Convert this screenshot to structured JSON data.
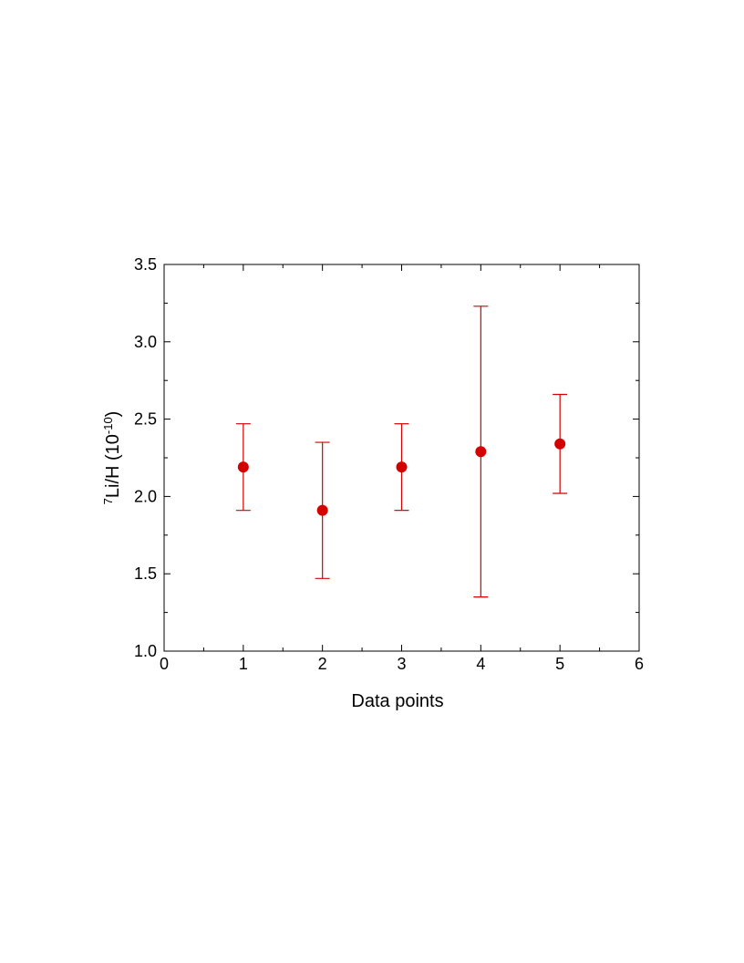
{
  "chart_data": {
    "type": "errorbar",
    "xlabel": "Data points",
    "ylabel_parts": [
      "7",
      "Li/H (10",
      "-10",
      ")"
    ],
    "x": [
      1,
      2,
      3,
      4,
      5
    ],
    "series": [
      {
        "color": "#d40000",
        "values": [
          2.19,
          1.91,
          2.19,
          2.29,
          2.34
        ],
        "errors": [
          0.28,
          0.44,
          0.28,
          0.94,
          0.32
        ]
      }
    ],
    "xlim": [
      0,
      6
    ],
    "xticks": [
      0,
      1,
      2,
      3,
      4,
      5,
      6
    ],
    "xminor_ticks": [
      0.5,
      1.5,
      2.5,
      3.5,
      4.5,
      5.5
    ],
    "ylim": [
      1.0,
      3.5
    ],
    "yticks": [
      {
        "value": 1.0,
        "label": "1.0"
      },
      1.5,
      {
        "value": 2.0,
        "label": "2.0"
      },
      2.5,
      {
        "value": 3.0,
        "label": "3.0"
      },
      3.5
    ],
    "yminor_ticks": [
      1.25,
      1.75,
      2.25,
      2.75,
      3.25
    ],
    "grid": false
  }
}
